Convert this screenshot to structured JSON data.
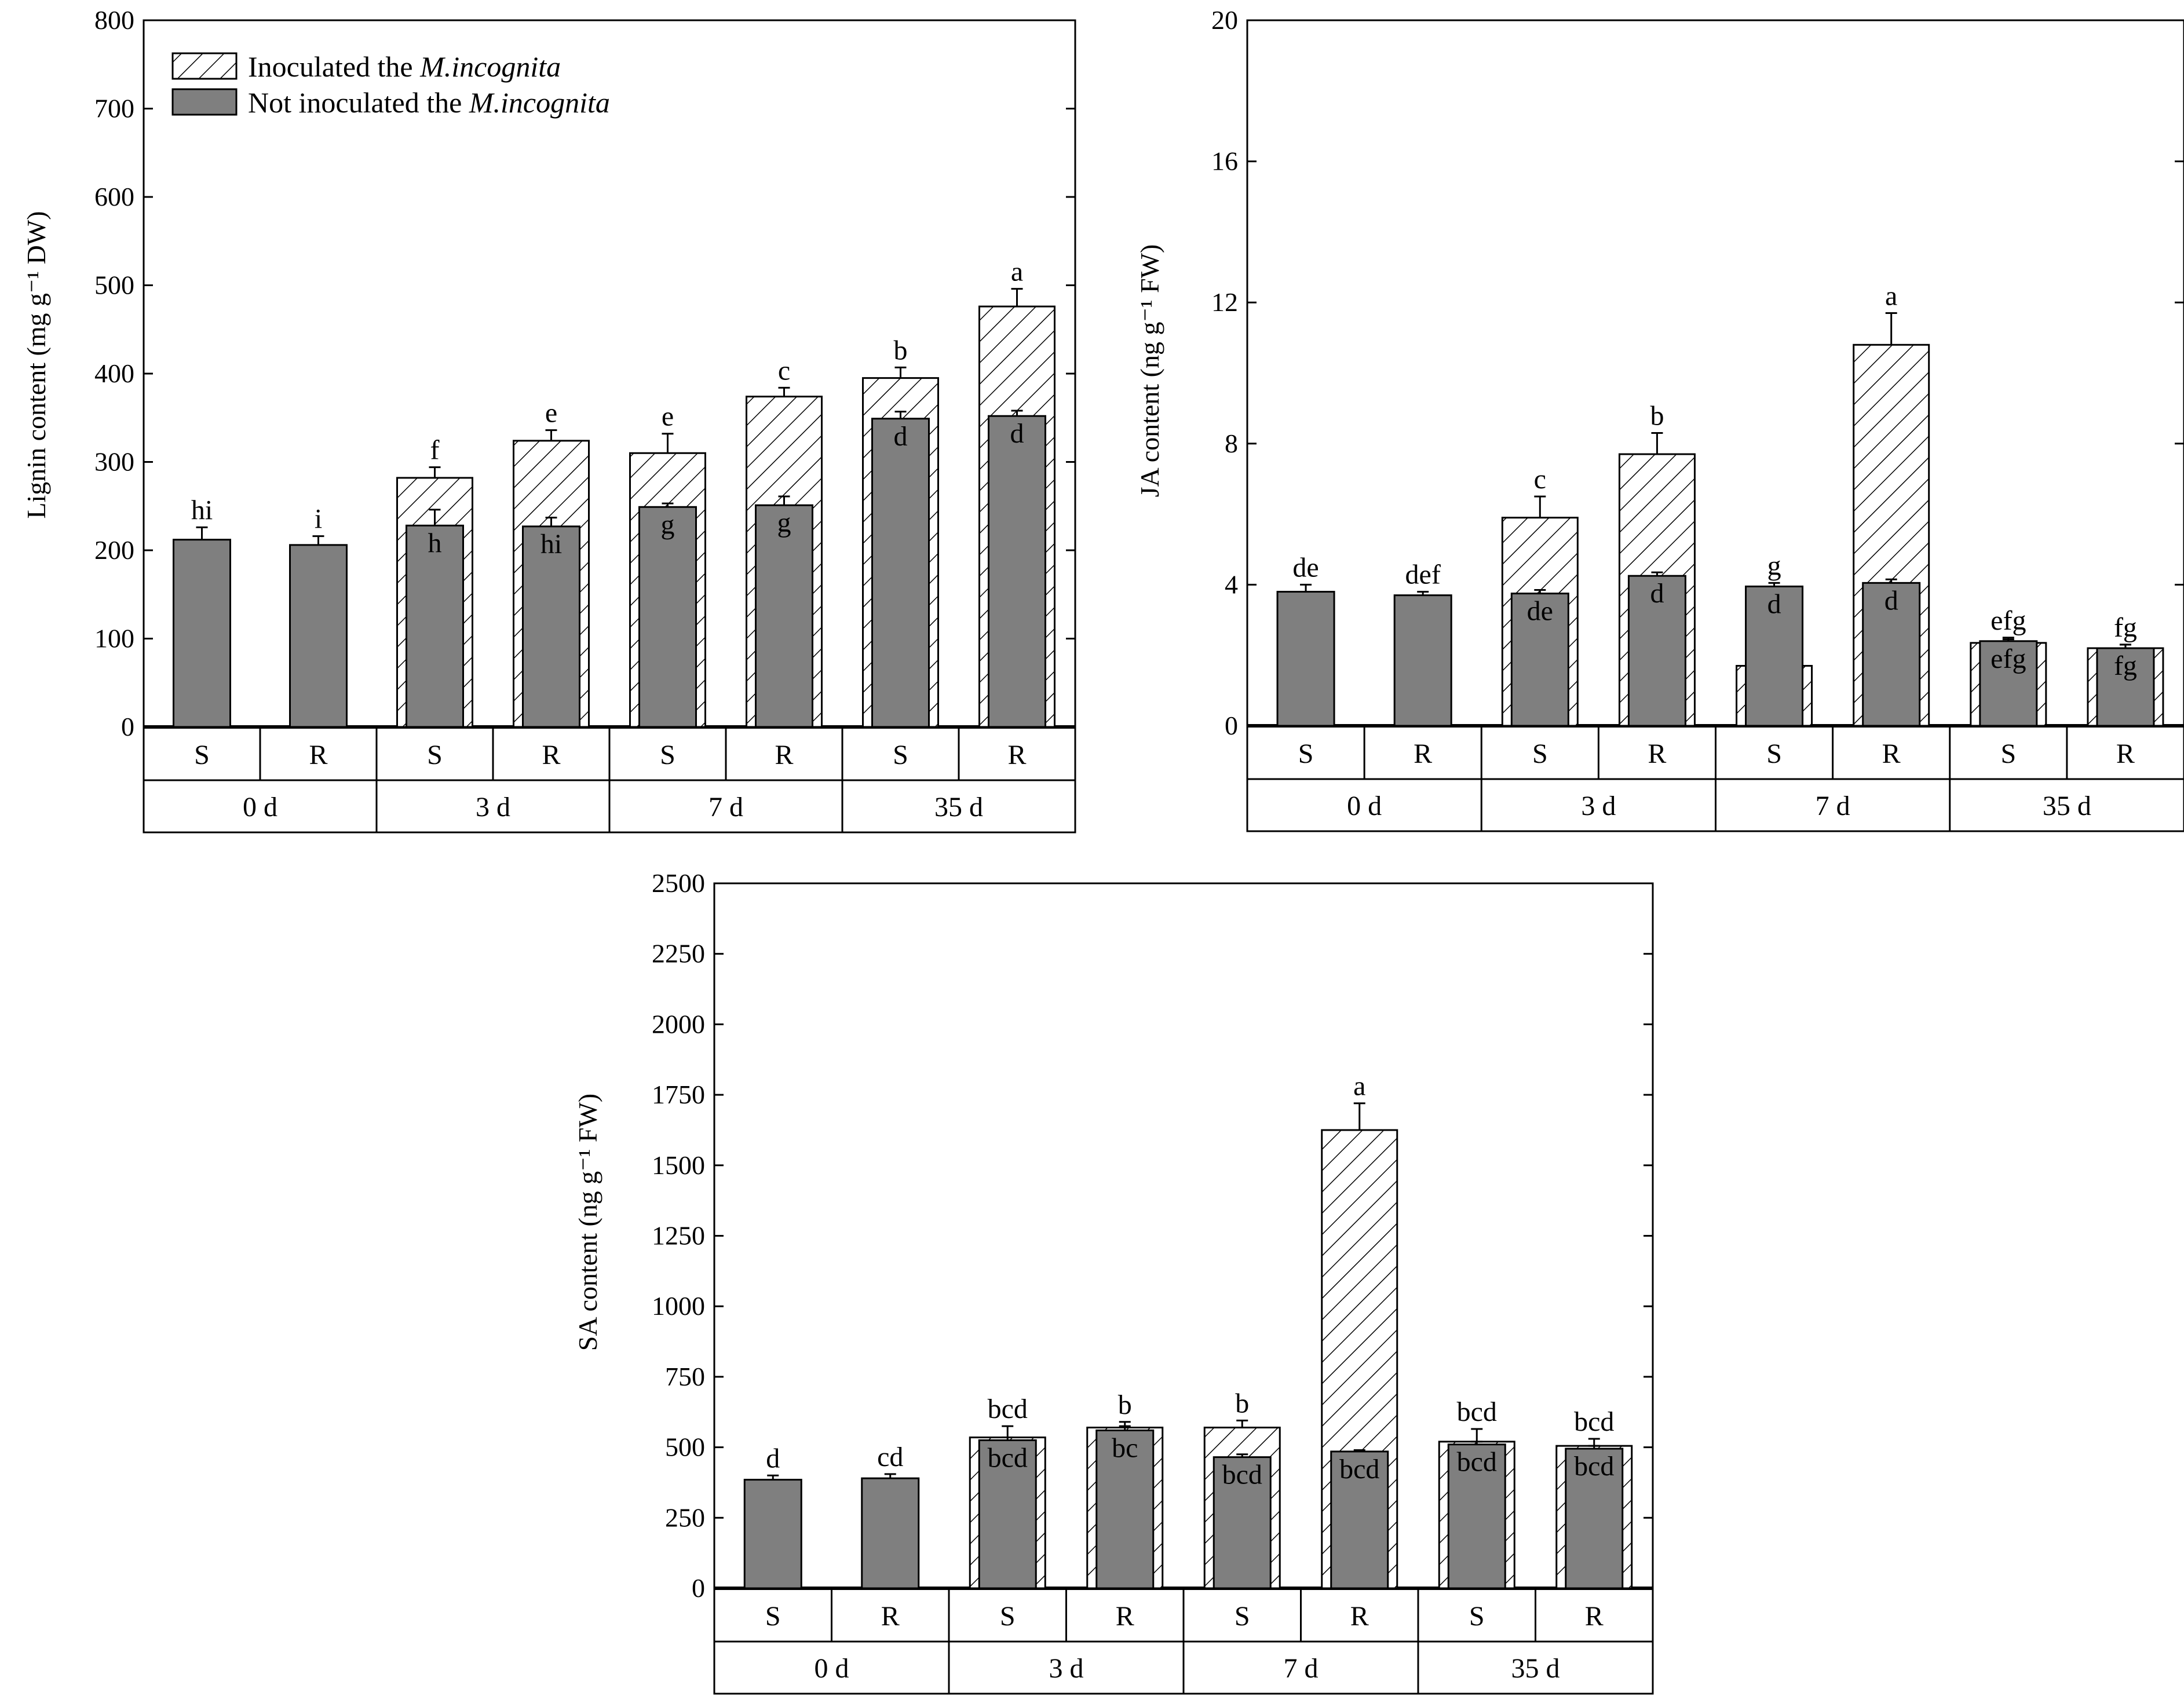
{
  "legend": {
    "inoculated": {
      "text": "Inoculated the ",
      "em": "M.incognita"
    },
    "not_inoculated": {
      "text": "Not inoculated the ",
      "em": "M.incognita"
    }
  },
  "colors": {
    "not_inoculated_fill": "#7f7f7f",
    "inoculated_fill": "hatched",
    "axis": "#000000"
  },
  "chart_data": [
    {
      "type": "bar",
      "ylabel": "Lignin content (mg g⁻¹ DW)",
      "ylim": [
        0,
        800
      ],
      "yticks": [
        0,
        100,
        200,
        300,
        400,
        500,
        600,
        700,
        800
      ],
      "legend": "top-left",
      "grid": false,
      "varieties": [
        "S",
        "R",
        "S",
        "R",
        "S",
        "R",
        "S",
        "R"
      ],
      "times": [
        "0 d",
        "3 d",
        "7 d",
        "35 d"
      ],
      "series": [
        {
          "name": "Inoculated the M.incognita",
          "values": [
            null,
            null,
            282,
            324,
            310,
            374,
            395,
            476
          ],
          "errors": [
            null,
            null,
            12,
            12,
            22,
            10,
            12,
            20
          ],
          "labels": [
            "",
            "",
            "f",
            "e",
            "e",
            "c",
            "b",
            "a"
          ]
        },
        {
          "name": "Not inoculated the M.incognita",
          "values": [
            212,
            206,
            228,
            227,
            249,
            251,
            349,
            352
          ],
          "errors": [
            14,
            10,
            18,
            10,
            4,
            10,
            8,
            6
          ],
          "labels": [
            "hi",
            "i",
            "h",
            "hi",
            "g",
            "g",
            "d",
            "d"
          ]
        }
      ]
    },
    {
      "type": "bar",
      "ylabel": "JA content (ng g⁻¹ FW)",
      "ylim": [
        0,
        20
      ],
      "yticks": [
        0,
        4,
        8,
        12,
        16,
        20
      ],
      "grid": false,
      "varieties": [
        "S",
        "R",
        "S",
        "R",
        "S",
        "R",
        "S",
        "R"
      ],
      "times": [
        "0 d",
        "3 d",
        "7 d",
        "35 d"
      ],
      "series": [
        {
          "name": "Inoculated the M.incognita",
          "values": [
            null,
            null,
            5.9,
            7.7,
            1.7,
            10.8,
            2.35,
            2.2
          ],
          "errors": [
            null,
            null,
            0.6,
            0.6,
            0.2,
            0.9,
            0.1,
            0.1
          ],
          "labels": [
            "",
            "",
            "c",
            "b",
            "g",
            "a",
            "efg",
            "fg"
          ]
        },
        {
          "name": "Not inoculated the M.incognita",
          "values": [
            3.8,
            3.7,
            3.75,
            4.25,
            3.95,
            4.05,
            2.4,
            2.2
          ],
          "errors": [
            0.2,
            0.1,
            0.1,
            0.1,
            0.1,
            0.1,
            0.1,
            0.1
          ],
          "labels": [
            "de",
            "def",
            "de",
            "d",
            "d",
            "d",
            "efg",
            "fg"
          ]
        }
      ]
    },
    {
      "type": "bar",
      "ylabel": "SA content (ng g⁻¹ FW)",
      "ylim": [
        0,
        2500
      ],
      "yticks": [
        0,
        250,
        500,
        750,
        1000,
        1250,
        1500,
        1750,
        2000,
        2250,
        2500
      ],
      "grid": false,
      "varieties": [
        "S",
        "R",
        "S",
        "R",
        "S",
        "R",
        "S",
        "R"
      ],
      "times": [
        "0 d",
        "3 d",
        "7 d",
        "35 d"
      ],
      "series": [
        {
          "name": "Inoculated the M.incognita",
          "values": [
            null,
            null,
            535,
            570,
            570,
            1625,
            520,
            505
          ],
          "errors": [
            null,
            null,
            40,
            20,
            25,
            95,
            45,
            25
          ],
          "labels": [
            "",
            "",
            "bcd",
            "b",
            "b",
            "a",
            "bcd",
            "bcd"
          ]
        },
        {
          "name": "Not inoculated the M.incognita",
          "values": [
            385,
            390,
            525,
            560,
            465,
            485,
            510,
            495
          ],
          "errors": [
            15,
            15,
            10,
            15,
            10,
            5,
            10,
            10
          ],
          "labels": [
            "d",
            "cd",
            "bcd",
            "bc",
            "bcd",
            "bcd",
            "bcd",
            "bcd"
          ]
        }
      ]
    }
  ]
}
